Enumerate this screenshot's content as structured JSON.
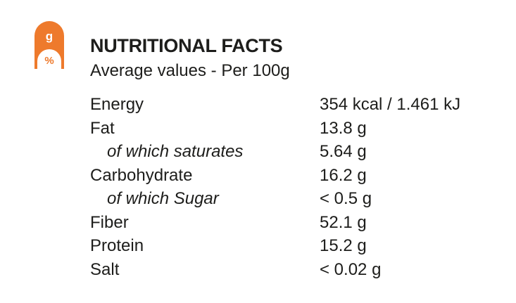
{
  "colors": {
    "accent": "#ee7a2c",
    "text": "#1d1d1b",
    "background": "#ffffff"
  },
  "badge": {
    "icon": "grams-percent-icon",
    "top_glyph": "g",
    "bottom_glyph": "%"
  },
  "header": {
    "title": "NUTRITIONAL FACTS",
    "subtitle": "Average values - Per 100g"
  },
  "facts": [
    {
      "label": "Energy",
      "value": "354 kcal / 1.461 kJ",
      "sub": false
    },
    {
      "label": "Fat",
      "value": "13.8 g",
      "sub": false
    },
    {
      "label": "of which saturates",
      "value": "5.64 g",
      "sub": true
    },
    {
      "label": "Carbohydrate",
      "value": "16.2 g",
      "sub": false
    },
    {
      "label": "of which Sugar",
      "value": "< 0.5 g",
      "sub": true
    },
    {
      "label": "Fiber",
      "value": "52.1 g",
      "sub": false
    },
    {
      "label": "Protein",
      "value": "15.2 g",
      "sub": false
    },
    {
      "label": "Salt",
      "value": "< 0.02 g",
      "sub": false
    }
  ]
}
